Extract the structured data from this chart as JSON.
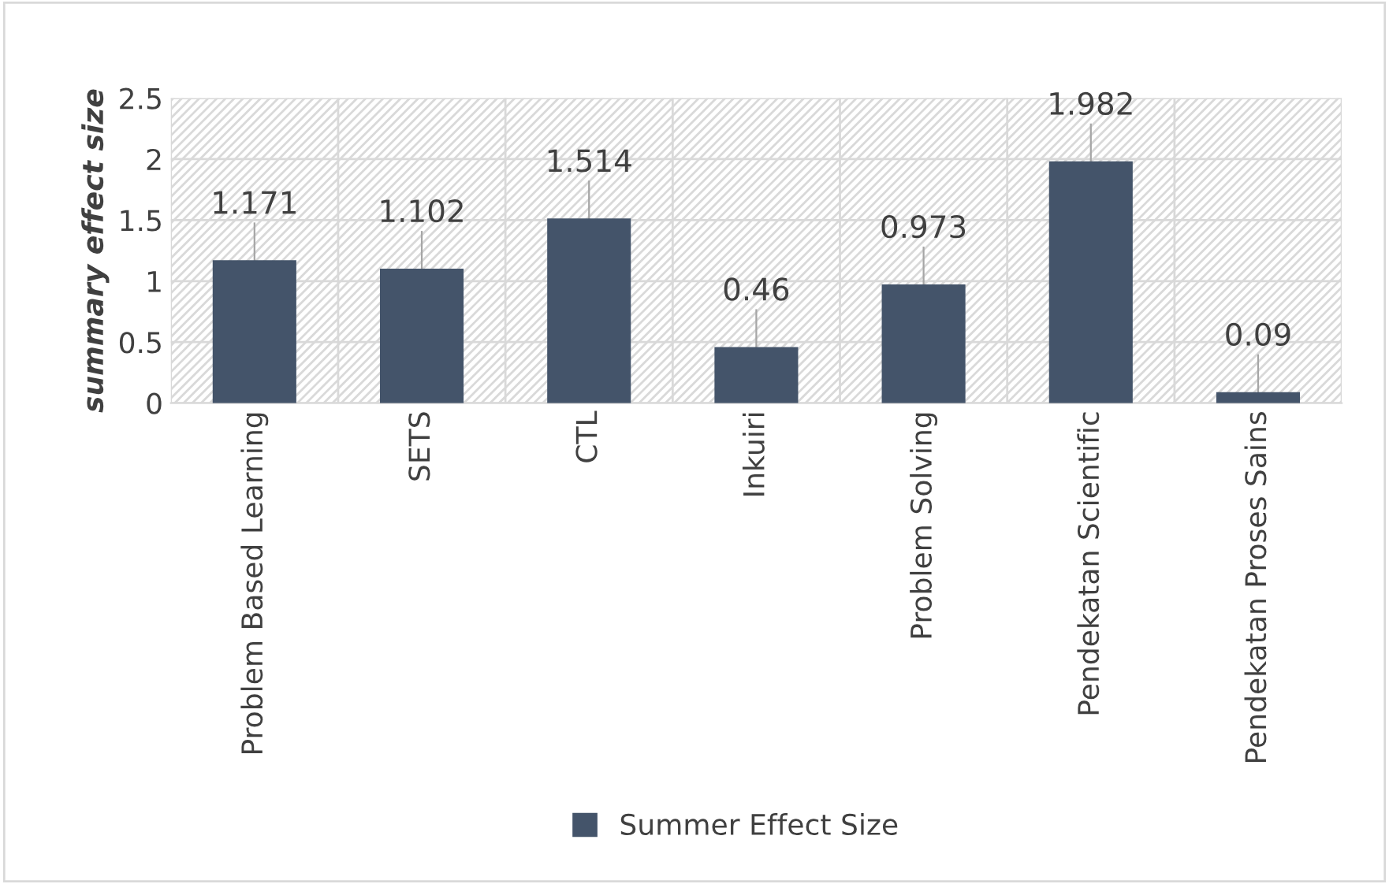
{
  "chart_data": {
    "type": "bar",
    "ylabel": "summary effect size",
    "categories": [
      "Problem Based Learning",
      "SETS",
      "CTL",
      "Inkuiri",
      "Problem Solving",
      "Pendekatan Scientific",
      "Pendekatan Proses Sains"
    ],
    "series": [
      {
        "name": "Summer Effect Size",
        "color": "#44546a",
        "values": [
          1.171,
          1.102,
          1.514,
          0.46,
          0.973,
          1.982,
          0.09
        ]
      }
    ],
    "ylim": [
      0,
      2.5
    ],
    "yticks": [
      0,
      0.5,
      1,
      1.5,
      2,
      2.5
    ],
    "grid": true,
    "data_labels": true,
    "legend": "bottom"
  }
}
